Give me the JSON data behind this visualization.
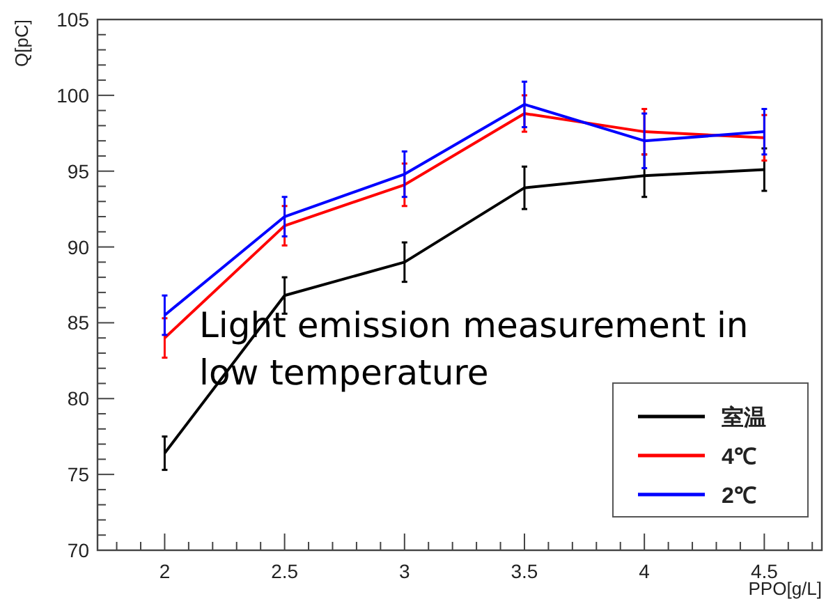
{
  "chart_data": {
    "type": "line",
    "xlabel": "PPO[g/L]",
    "ylabel": "Q[pC]",
    "x": [
      2,
      2.5,
      3,
      3.5,
      4,
      4.5
    ],
    "xlim": [
      1.72,
      4.74
    ],
    "xticks": [
      2,
      2.5,
      3,
      3.5,
      4,
      4.5
    ],
    "ylim": [
      70,
      105
    ],
    "yticks": [
      70,
      75,
      80,
      85,
      90,
      95,
      100,
      105
    ],
    "series": [
      {
        "name": "室温",
        "color": "#000000",
        "values": [
          76.4,
          86.8,
          89.0,
          93.9,
          94.7,
          95.1
        ],
        "errors": [
          1.1,
          1.2,
          1.3,
          1.4,
          1.4,
          1.4
        ]
      },
      {
        "name": "4℃",
        "color": "#ff0000",
        "values": [
          84.0,
          91.4,
          94.1,
          98.8,
          97.6,
          97.2
        ],
        "errors": [
          1.3,
          1.3,
          1.4,
          1.2,
          1.5,
          1.5
        ]
      },
      {
        "name": "2℃",
        "color": "#0000ff",
        "values": [
          85.5,
          92.0,
          94.8,
          99.4,
          97.0,
          97.6
        ],
        "errors": [
          1.3,
          1.3,
          1.5,
          1.5,
          1.8,
          1.5
        ]
      }
    ],
    "annotations": [
      "Light emission measurement in low temperature"
    ],
    "legend": "bottom right",
    "grid": false,
    "marker": "none",
    "line_style": "solid"
  }
}
